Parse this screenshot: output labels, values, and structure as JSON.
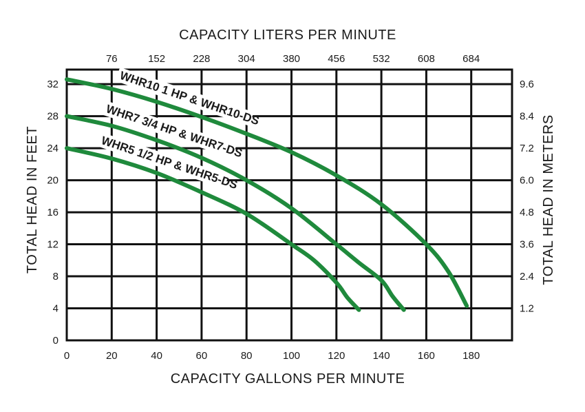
{
  "chart_data": {
    "type": "line",
    "title": "",
    "xlabel": "CAPACITY GALLONS PER MINUTE",
    "ylabel": "TOTAL HEAD IN FEET",
    "x2label": "CAPACITY LITERS PER MINUTE",
    "y2label": "TOTAL HEAD IN METERS",
    "xlim": [
      0,
      200
    ],
    "ylim": [
      0,
      34
    ],
    "x_ticks": [
      0,
      20,
      40,
      60,
      80,
      100,
      120,
      140,
      160,
      180
    ],
    "y_ticks": [
      0,
      4,
      8,
      12,
      16,
      20,
      24,
      28,
      32
    ],
    "x2_ticks": [
      {
        "x": 20,
        "label": "76"
      },
      {
        "x": 40,
        "label": "152"
      },
      {
        "x": 60,
        "label": "228"
      },
      {
        "x": 80,
        "label": "304"
      },
      {
        "x": 100,
        "label": "380"
      },
      {
        "x": 120,
        "label": "456"
      },
      {
        "x": 140,
        "label": "532"
      },
      {
        "x": 160,
        "label": "608"
      },
      {
        "x": 180,
        "label": "684"
      }
    ],
    "y2_ticks": [
      {
        "y": 4,
        "label": "1.2"
      },
      {
        "y": 8,
        "label": "2.4"
      },
      {
        "y": 12,
        "label": "3.6"
      },
      {
        "y": 16,
        "label": "4.8"
      },
      {
        "y": 20,
        "label": "6.0"
      },
      {
        "y": 24,
        "label": "7.2"
      },
      {
        "y": 28,
        "label": "8.4"
      },
      {
        "y": 32,
        "label": "9.6"
      }
    ],
    "grid": true,
    "line_color": "#1f8a3c",
    "series": [
      {
        "name": "WHR10 1 HP & WHR10-DS",
        "x": [
          0,
          20,
          40,
          60,
          80,
          100,
          120,
          140,
          160,
          170,
          178
        ],
        "y": [
          32.6,
          31.4,
          29.8,
          27.9,
          25.8,
          23.5,
          20.6,
          17.0,
          12.0,
          8.5,
          4.3
        ]
      },
      {
        "name": "WHR7 3/4 HP & WHR7-DS",
        "x": [
          0,
          20,
          40,
          60,
          80,
          100,
          120,
          130,
          140,
          145,
          150
        ],
        "y": [
          28.0,
          26.8,
          25.0,
          22.8,
          20.0,
          16.5,
          12.0,
          9.7,
          7.5,
          5.5,
          3.8
        ]
      },
      {
        "name": "WHR5 1/2 HP & WHR5-DS",
        "x": [
          0,
          20,
          40,
          60,
          80,
          100,
          110,
          120,
          125,
          130
        ],
        "y": [
          24.0,
          22.7,
          20.9,
          18.5,
          15.8,
          12.0,
          10.0,
          7.2,
          5.3,
          3.8
        ]
      }
    ]
  }
}
